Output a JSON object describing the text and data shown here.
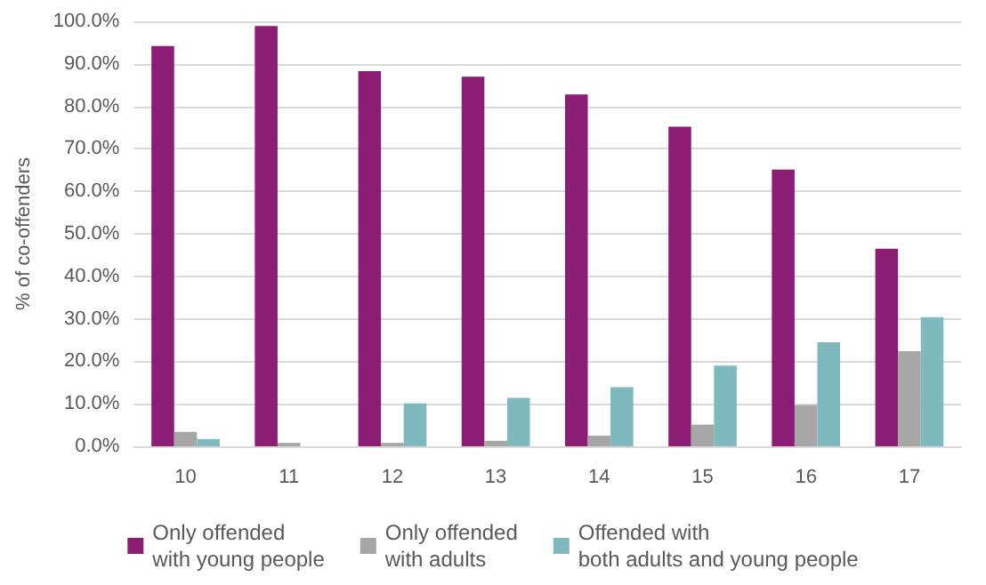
{
  "chart_data": {
    "type": "bar",
    "ylabel": "% of co-offenders",
    "categories": [
      "10",
      "11",
      "12",
      "13",
      "14",
      "15",
      "16",
      "17"
    ],
    "series": [
      {
        "name": "Only offended\nwith young people",
        "color": "#8b1e74",
        "values": [
          94.2,
          98.9,
          88.3,
          87.0,
          82.8,
          75.2,
          65.1,
          46.5
        ]
      },
      {
        "name": "Only offended\nwith adults",
        "color": "#a6a6a6",
        "values": [
          3.4,
          0.8,
          0.8,
          1.3,
          2.5,
          5.1,
          9.7,
          22.4
        ]
      },
      {
        "name": "Offended with\nboth adults and young people",
        "color": "#7fb9c0",
        "values": [
          1.7,
          0,
          10.1,
          11.4,
          13.9,
          19.0,
          24.5,
          30.4
        ]
      }
    ],
    "ylim": [
      0,
      100
    ],
    "yticks": [
      {
        "value": 0,
        "label": "0.0%"
      },
      {
        "value": 10,
        "label": "10.0%"
      },
      {
        "value": 20,
        "label": "20.0%"
      },
      {
        "value": 30,
        "label": "30.0%"
      },
      {
        "value": 40,
        "label": "40.0%"
      },
      {
        "value": 50,
        "label": "50.0%"
      },
      {
        "value": 60,
        "label": "60.0%"
      },
      {
        "value": 70,
        "label": "70.0%"
      },
      {
        "value": 80,
        "label": "80.0%"
      },
      {
        "value": 90,
        "label": "90.0%"
      },
      {
        "value": 100,
        "label": "100.0%"
      }
    ],
    "grid": "y",
    "legend": "bottom"
  }
}
